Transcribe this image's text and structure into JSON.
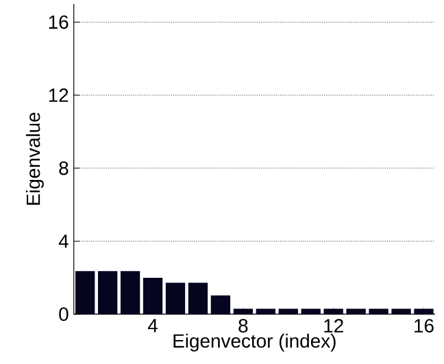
{
  "chart_data": {
    "type": "bar",
    "xlabel": "Eigenvector (index)",
    "ylabel": "Eigenvalue",
    "x": [
      1,
      2,
      3,
      4,
      5,
      6,
      7,
      8,
      9,
      10,
      11,
      12,
      13,
      14,
      15,
      16
    ],
    "values": [
      2.36,
      2.36,
      2.36,
      1.99,
      1.72,
      1.72,
      1.03,
      0.3,
      0.3,
      0.3,
      0.3,
      0.3,
      0.3,
      0.3,
      0.3,
      0.3
    ],
    "color": "#050520",
    "xlim": [
      0.5,
      16.5
    ],
    "ylim": [
      0,
      17
    ],
    "xticks": [
      4,
      8,
      12,
      16
    ],
    "yticks": [
      0,
      4,
      8,
      12,
      16
    ],
    "grid": "y"
  }
}
